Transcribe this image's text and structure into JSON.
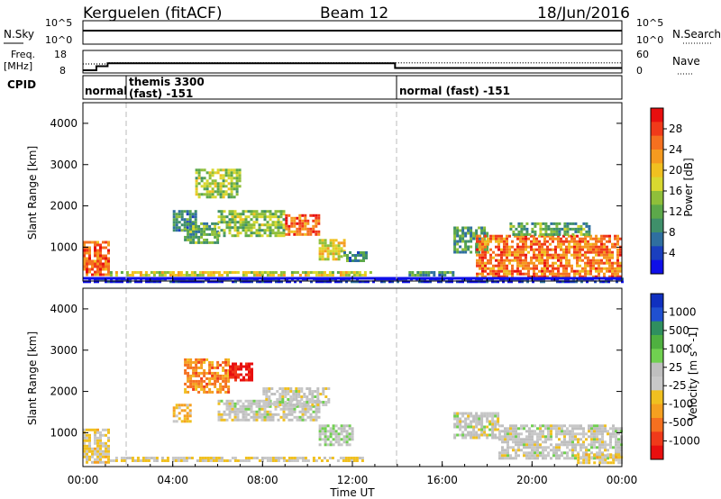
{
  "header": {
    "radar": "Kerguelen (fitACF)",
    "beam": "Beam 12",
    "date": "18/Jun/2016"
  },
  "status_panel": {
    "nsky_label": "N.Sky",
    "nsearch_label": "N.Search",
    "freq_label_line1": "Freq.",
    "freq_label_line2": "[MHz]",
    "nave_label": "Nave",
    "cpid_label": "CPID",
    "nsky_ticks": [
      "10^5",
      "10^0"
    ],
    "nsearch_ticks": [
      "10^5",
      "10^0"
    ],
    "freq_ticks": [
      "18",
      "8"
    ],
    "nave_ticks": [
      "60",
      "0"
    ],
    "modes": [
      {
        "start_hour": 0,
        "label": "normal"
      },
      {
        "start_hour": 2,
        "label": "themis 3300"
      },
      {
        "start_hour": 2,
        "label": "(fast) -151"
      },
      {
        "start_hour": 14,
        "label": "normal (fast) -151"
      }
    ],
    "freq_steps": [
      {
        "hour": 0,
        "mhz": 9.2
      },
      {
        "hour": 0.6,
        "mhz": 11.0
      },
      {
        "hour": 1.1,
        "mhz": 12.3
      },
      {
        "hour": 13.9,
        "mhz": 10.2
      },
      {
        "hour": 24,
        "mhz": 10.2
      }
    ],
    "nave_steps": [
      {
        "hour": 0,
        "value": 24
      },
      {
        "hour": 1.1,
        "value": 27
      },
      {
        "hour": 13.9,
        "value": 27
      },
      {
        "hour": 24,
        "value": 27
      }
    ]
  },
  "chart_data": [
    {
      "type": "heatmap",
      "name": "power",
      "xlabel": "Time UT",
      "ylabel": "Slant Range [km]",
      "x_ticks": [
        "00:00",
        "04:00",
        "08:00",
        "12:00",
        "16:00",
        "20:00",
        "00:00"
      ],
      "xlim": [
        0,
        24
      ],
      "y_ticks": [
        1000,
        2000,
        3000,
        4000
      ],
      "ylim": [
        180,
        4500
      ],
      "colorbar": {
        "label": "Power [dB]",
        "ticks": [
          "4",
          "8",
          "12",
          "16",
          "20",
          "24",
          "28"
        ],
        "colors": [
          "#0f0fe8",
          "#1a3fbf",
          "#2f6fa0",
          "#3f8f6a",
          "#5ca84a",
          "#8fbf3a",
          "#d8d830",
          "#f0c020",
          "#f59a20",
          "#f57020",
          "#f03a1a",
          "#e80f0f"
        ]
      },
      "regions": [
        {
          "t0": 0.0,
          "t1": 1.2,
          "r0": 300,
          "r1": 1150,
          "value": 26
        },
        {
          "t0": 0.0,
          "t1": 24.0,
          "r0": 180,
          "r1": 260,
          "value": 2
        },
        {
          "t0": 1.2,
          "t1": 12.8,
          "r0": 300,
          "r1": 420,
          "value": 18
        },
        {
          "t0": 4.0,
          "t1": 5.0,
          "r0": 1400,
          "r1": 1900,
          "value": 9
        },
        {
          "t0": 5.0,
          "t1": 7.0,
          "r0": 2200,
          "r1": 2900,
          "value": 15
        },
        {
          "t0": 4.5,
          "t1": 6.0,
          "r0": 1100,
          "r1": 1600,
          "value": 12
        },
        {
          "t0": 6.0,
          "t1": 9.0,
          "r0": 1300,
          "r1": 1900,
          "value": 14
        },
        {
          "t0": 9.0,
          "t1": 10.5,
          "r0": 1300,
          "r1": 1800,
          "value": 26
        },
        {
          "t0": 10.5,
          "t1": 11.6,
          "r0": 700,
          "r1": 1200,
          "value": 18
        },
        {
          "t0": 11.6,
          "t1": 12.6,
          "r0": 700,
          "r1": 900,
          "value": 9
        },
        {
          "t0": 14.5,
          "t1": 16.5,
          "r0": 300,
          "r1": 420,
          "value": 10
        },
        {
          "t0": 16.5,
          "t1": 18.0,
          "r0": 900,
          "r1": 1500,
          "value": 11
        },
        {
          "t0": 17.5,
          "t1": 24.0,
          "r0": 300,
          "r1": 1300,
          "value": 25
        },
        {
          "t0": 19.0,
          "t1": 22.5,
          "r0": 1300,
          "r1": 1600,
          "value": 12
        }
      ]
    },
    {
      "type": "heatmap",
      "name": "velocity",
      "xlabel": "Time UT",
      "ylabel": "Slant Range [km]",
      "x_ticks": [
        "00:00",
        "04:00",
        "08:00",
        "12:00",
        "16:00",
        "20:00",
        "00:00"
      ],
      "xlim": [
        0,
        24
      ],
      "y_ticks": [
        1000,
        2000,
        3000,
        4000
      ],
      "ylim": [
        180,
        4500
      ],
      "colorbar": {
        "label": "Velocity [m s^-1]",
        "ticks": [
          "1000",
          "500",
          "100",
          "25",
          "-25",
          "-100",
          "-500",
          "-1000"
        ],
        "colors": [
          "#1030c0",
          "#2050d0",
          "#2f8f5f",
          "#4fb040",
          "#70d050",
          "#bfbfbf",
          "#c8c8c8",
          "#f0c020",
          "#f5a020",
          "#f57020",
          "#f03a1a",
          "#e80f0f"
        ]
      },
      "regions": [
        {
          "t0": 0.0,
          "t1": 1.2,
          "r0": 300,
          "r1": 1100,
          "value": -150
        },
        {
          "t0": 1.2,
          "t1": 12.5,
          "r0": 300,
          "r1": 420,
          "value": -120
        },
        {
          "t0": 4.0,
          "t1": 4.8,
          "r0": 1300,
          "r1": 1700,
          "value": -300
        },
        {
          "t0": 4.5,
          "t1": 6.5,
          "r0": 2000,
          "r1": 2800,
          "value": -500
        },
        {
          "t0": 6.5,
          "t1": 7.5,
          "r0": 2300,
          "r1": 2700,
          "value": -900
        },
        {
          "t0": 6.0,
          "t1": 10.5,
          "r0": 1300,
          "r1": 1800,
          "value": 0
        },
        {
          "t0": 8.0,
          "t1": 11.0,
          "r0": 1700,
          "r1": 2100,
          "value": 0
        },
        {
          "t0": 10.5,
          "t1": 12.0,
          "r0": 700,
          "r1": 1200,
          "value": 80
        },
        {
          "t0": 16.5,
          "t1": 18.5,
          "r0": 900,
          "r1": 1500,
          "value": 0
        },
        {
          "t0": 18.5,
          "t1": 24.0,
          "r0": 400,
          "r1": 1200,
          "value": 0
        },
        {
          "t0": 22.0,
          "t1": 24.0,
          "r0": 300,
          "r1": 500,
          "value": -200
        }
      ]
    }
  ]
}
